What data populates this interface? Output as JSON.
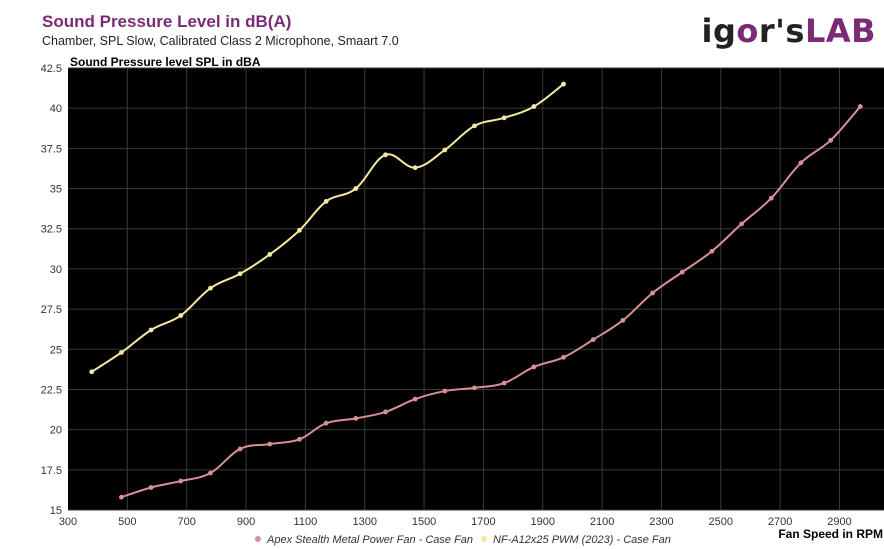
{
  "header": {
    "title": "Sound Pressure Level in dB(A)",
    "subtitle": "Chamber, SPL Slow, Calibrated Class 2 Microphone, Smaart 7.0",
    "logo": {
      "part1": "ig",
      "part2": "o",
      "part3": "r's",
      "part4": "LAB"
    }
  },
  "colors": {
    "plot_bg": "#000000",
    "grid": "#3a3a3a",
    "series_apex": "#d88f95",
    "series_noctua": "#f5e9a0",
    "brand": "#7b2a76"
  },
  "chart_data": {
    "type": "line",
    "title": "Sound Pressure Level in dB(A)",
    "ylabel": "Sound Pressure level SPL in dBA",
    "xlabel": "Fan Speed in RPM",
    "xlim": [
      300,
      3050
    ],
    "ylim": [
      15,
      42.5
    ],
    "xticks": [
      "300",
      "500",
      "700",
      "900",
      "1100",
      "1300",
      "1500",
      "1700",
      "1900",
      "2100",
      "2300",
      "2500",
      "2700",
      "2900"
    ],
    "yticks": [
      "15",
      "17.5",
      "20",
      "22.5",
      "25",
      "27.5",
      "30",
      "32.5",
      "35",
      "37.5",
      "40",
      "42.5"
    ],
    "grid": true,
    "legend_position": "bottom-center",
    "series": [
      {
        "name": "Apex Stealth Metal Power Fan - Case Fan",
        "color": "#d88f95",
        "x": [
          480,
          580,
          680,
          780,
          880,
          980,
          1080,
          1170,
          1270,
          1370,
          1470,
          1570,
          1670,
          1770,
          1870,
          1970,
          2070,
          2170,
          2270,
          2370,
          2470,
          2570,
          2670,
          2770,
          2870,
          2970
        ],
        "y": [
          15.8,
          16.4,
          16.8,
          17.3,
          18.8,
          19.1,
          19.4,
          20.4,
          20.7,
          21.1,
          21.9,
          22.4,
          22.6,
          22.9,
          23.9,
          24.5,
          25.6,
          26.8,
          28.5,
          29.8,
          31.1,
          32.8,
          34.4,
          36.6,
          38.0,
          40.1
        ]
      },
      {
        "name": "NF-A12x25 PWM (2023) - Case Fan",
        "color": "#f5e9a0",
        "x": [
          380,
          480,
          580,
          680,
          780,
          880,
          980,
          1080,
          1170,
          1270,
          1370,
          1470,
          1570,
          1670,
          1770,
          1870,
          1970
        ],
        "y": [
          23.6,
          24.8,
          26.2,
          27.1,
          28.8,
          29.7,
          30.9,
          32.4,
          34.2,
          35.0,
          37.1,
          36.3,
          37.4,
          38.9,
          39.4,
          40.1,
          41.5
        ]
      }
    ]
  }
}
